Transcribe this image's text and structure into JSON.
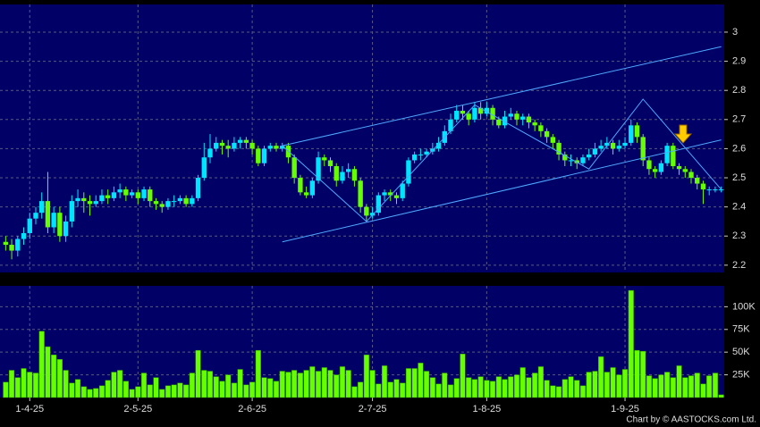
{
  "chart_data": {
    "type": "candlestick",
    "categories": [
      null,
      null,
      null,
      null,
      "1-4-25",
      null,
      null,
      null,
      null,
      null,
      null,
      null,
      null,
      null,
      null,
      null,
      null,
      null,
      null,
      null,
      null,
      null,
      "2-5-25",
      null,
      null,
      null,
      null,
      null,
      null,
      null,
      null,
      null,
      null,
      null,
      null,
      null,
      null,
      null,
      null,
      null,
      null,
      "2-6-25",
      null,
      null,
      null,
      null,
      null,
      null,
      null,
      null,
      null,
      null,
      null,
      null,
      null,
      null,
      null,
      null,
      null,
      null,
      null,
      "2-7-25",
      null,
      null,
      null,
      null,
      null,
      null,
      null,
      null,
      null,
      null,
      null,
      null,
      null,
      null,
      null,
      null,
      null,
      null,
      "1-8-25",
      null,
      null,
      null,
      null,
      null,
      null,
      null,
      null,
      null,
      null,
      null,
      null,
      null,
      null,
      null,
      null,
      null,
      null,
      null,
      null,
      null,
      null,
      "1-9-25",
      null,
      null,
      null,
      null,
      null,
      null,
      null,
      null,
      null,
      null,
      null,
      null,
      null,
      null,
      null,
      null
    ],
    "open": [
      2.28,
      2.27,
      2.25,
      2.29,
      2.31,
      2.36,
      2.38,
      2.42,
      2.33,
      2.38,
      2.3,
      2.35,
      2.42,
      2.43,
      2.42,
      2.41,
      2.42,
      2.44,
      2.43,
      2.45,
      2.46,
      2.44,
      2.45,
      2.43,
      2.46,
      2.42,
      2.41,
      2.4,
      2.42,
      2.42,
      2.43,
      2.41,
      2.43,
      2.5,
      2.57,
      2.6,
      2.62,
      2.61,
      2.6,
      2.62,
      2.63,
      2.62,
      2.6,
      2.55,
      2.6,
      2.61,
      2.6,
      2.61,
      2.57,
      2.5,
      2.45,
      2.44,
      2.49,
      2.57,
      2.56,
      2.54,
      2.49,
      2.52,
      2.53,
      2.49,
      2.4,
      2.37,
      2.38,
      2.44,
      2.45,
      2.44,
      2.43,
      2.48,
      2.56,
      2.58,
      2.58,
      2.59,
      2.6,
      2.62,
      2.66,
      2.7,
      2.73,
      2.72,
      2.7,
      2.74,
      2.72,
      2.74,
      2.7,
      2.68,
      2.71,
      2.72,
      2.7,
      2.71,
      2.69,
      2.68,
      2.66,
      2.64,
      2.62,
      2.58,
      2.56,
      2.56,
      2.55,
      2.57,
      2.58,
      2.6,
      2.61,
      2.62,
      2.6,
      2.61,
      2.62,
      2.68,
      2.64,
      2.56,
      2.53,
      2.52,
      2.55,
      2.61,
      2.54,
      2.53,
      2.52,
      2.5,
      2.48,
      2.46,
      2.46,
      2.46
    ],
    "high": [
      2.3,
      2.29,
      2.3,
      2.33,
      2.38,
      2.4,
      2.45,
      2.52,
      2.4,
      2.4,
      2.37,
      2.44,
      2.46,
      2.45,
      2.44,
      2.44,
      2.46,
      2.46,
      2.47,
      2.48,
      2.47,
      2.46,
      2.46,
      2.47,
      2.47,
      2.43,
      2.42,
      2.43,
      2.44,
      2.44,
      2.44,
      2.44,
      2.51,
      2.62,
      2.65,
      2.64,
      2.63,
      2.63,
      2.64,
      2.64,
      2.64,
      2.63,
      2.61,
      2.61,
      2.62,
      2.62,
      2.62,
      2.62,
      2.58,
      2.51,
      2.47,
      2.5,
      2.59,
      2.58,
      2.57,
      2.55,
      2.54,
      2.55,
      2.54,
      2.5,
      2.41,
      2.4,
      2.45,
      2.46,
      2.46,
      2.45,
      2.49,
      2.57,
      2.59,
      2.6,
      2.6,
      2.62,
      2.64,
      2.68,
      2.72,
      2.75,
      2.75,
      2.73,
      2.76,
      2.76,
      2.76,
      2.75,
      2.71,
      2.73,
      2.74,
      2.73,
      2.72,
      2.72,
      2.7,
      2.69,
      2.67,
      2.65,
      2.63,
      2.59,
      2.58,
      2.57,
      2.58,
      2.6,
      2.62,
      2.63,
      2.64,
      2.63,
      2.63,
      2.64,
      2.7,
      2.69,
      2.65,
      2.57,
      2.54,
      2.56,
      2.62,
      2.62,
      2.55,
      2.54,
      2.53,
      2.51,
      2.49,
      2.47,
      2.47,
      2.47
    ],
    "low": [
      2.25,
      2.22,
      2.23,
      2.27,
      2.29,
      2.34,
      2.36,
      2.31,
      2.31,
      2.28,
      2.28,
      2.33,
      2.4,
      2.38,
      2.37,
      2.4,
      2.41,
      2.41,
      2.42,
      2.43,
      2.42,
      2.43,
      2.41,
      2.42,
      2.4,
      2.39,
      2.38,
      2.39,
      2.4,
      2.41,
      2.4,
      2.4,
      2.42,
      2.49,
      2.55,
      2.59,
      2.58,
      2.57,
      2.59,
      2.6,
      2.6,
      2.58,
      2.54,
      2.54,
      2.59,
      2.59,
      2.59,
      2.55,
      2.48,
      2.44,
      2.43,
      2.43,
      2.48,
      2.54,
      2.52,
      2.47,
      2.48,
      2.5,
      2.47,
      2.38,
      2.35,
      2.36,
      2.37,
      2.42,
      2.42,
      2.41,
      2.42,
      2.47,
      2.55,
      2.56,
      2.57,
      2.58,
      2.59,
      2.61,
      2.65,
      2.69,
      2.7,
      2.68,
      2.69,
      2.7,
      2.71,
      2.68,
      2.67,
      2.67,
      2.7,
      2.68,
      2.68,
      2.67,
      2.66,
      2.64,
      2.62,
      2.6,
      2.56,
      2.54,
      2.54,
      2.53,
      2.54,
      2.56,
      2.57,
      2.59,
      2.6,
      2.58,
      2.59,
      2.6,
      2.61,
      2.62,
      2.54,
      2.51,
      2.5,
      2.51,
      2.54,
      2.53,
      2.51,
      2.5,
      2.48,
      2.46,
      2.41,
      2.44,
      2.45,
      2.45
    ],
    "close": [
      2.27,
      2.25,
      2.29,
      2.31,
      2.36,
      2.38,
      2.42,
      2.33,
      2.38,
      2.3,
      2.35,
      2.42,
      2.43,
      2.42,
      2.41,
      2.42,
      2.44,
      2.43,
      2.45,
      2.46,
      2.44,
      2.45,
      2.43,
      2.46,
      2.42,
      2.41,
      2.4,
      2.42,
      2.42,
      2.43,
      2.41,
      2.43,
      2.5,
      2.57,
      2.6,
      2.62,
      2.61,
      2.6,
      2.62,
      2.63,
      2.62,
      2.6,
      2.55,
      2.6,
      2.61,
      2.6,
      2.61,
      2.57,
      2.5,
      2.45,
      2.44,
      2.49,
      2.57,
      2.56,
      2.54,
      2.49,
      2.52,
      2.53,
      2.49,
      2.4,
      2.37,
      2.38,
      2.44,
      2.45,
      2.44,
      2.43,
      2.48,
      2.56,
      2.58,
      2.58,
      2.59,
      2.6,
      2.62,
      2.66,
      2.7,
      2.73,
      2.72,
      2.7,
      2.74,
      2.72,
      2.74,
      2.7,
      2.68,
      2.71,
      2.72,
      2.7,
      2.71,
      2.69,
      2.68,
      2.66,
      2.64,
      2.62,
      2.58,
      2.56,
      2.56,
      2.55,
      2.57,
      2.58,
      2.6,
      2.61,
      2.62,
      2.6,
      2.61,
      2.62,
      2.68,
      2.64,
      2.56,
      2.53,
      2.52,
      2.55,
      2.61,
      2.54,
      2.53,
      2.52,
      2.5,
      2.48,
      2.46,
      2.46,
      2.46,
      2.46
    ],
    "up_color": "#00e5ff",
    "down_color": "#66ff00",
    "ylim": [
      2.175,
      3.095
    ],
    "yticks": [
      2.2,
      2.3,
      2.4,
      2.5,
      2.6,
      2.7,
      2.8,
      2.9,
      3
    ],
    "grid": true,
    "overlays": [
      {
        "color": "#4fa8ff",
        "x": [
          46,
          119
        ],
        "y": [
          2.61,
          2.95
        ]
      },
      {
        "color": "#4fa8ff",
        "x": [
          46,
          119
        ],
        "y": [
          2.28,
          2.63
        ]
      },
      {
        "color": "#4fa8ff",
        "x": [
          46,
          60,
          78,
          97,
          106,
          119
        ],
        "y": [
          2.61,
          2.35,
          2.75,
          2.53,
          2.77,
          2.46
        ]
      }
    ],
    "volume": {
      "color": "#66ff00",
      "values": [
        17000,
        30000,
        22000,
        32000,
        28000,
        27000,
        73000,
        56000,
        47000,
        42000,
        30000,
        16000,
        20000,
        12000,
        9000,
        10000,
        13000,
        19000,
        28000,
        30000,
        18000,
        9000,
        12000,
        27000,
        14000,
        22000,
        9000,
        13000,
        14000,
        16000,
        14000,
        27000,
        52000,
        30000,
        29000,
        23000,
        18000,
        25000,
        16000,
        31000,
        14000,
        17000,
        52000,
        22000,
        21000,
        18000,
        29000,
        28000,
        30000,
        27000,
        30000,
        34000,
        29000,
        33000,
        30000,
        25000,
        34000,
        30000,
        12000,
        17000,
        47000,
        30000,
        15000,
        35000,
        17000,
        20000,
        16000,
        32000,
        32000,
        38000,
        29000,
        22000,
        15000,
        27000,
        14000,
        21000,
        48000,
        22000,
        20000,
        23000,
        19000,
        18000,
        23000,
        20000,
        23000,
        25000,
        33000,
        22000,
        27000,
        34000,
        19000,
        13000,
        12000,
        20000,
        23000,
        19000,
        13000,
        28000,
        29000,
        45000,
        28000,
        33000,
        25000,
        31000,
        118000,
        52000,
        51000,
        24000,
        21000,
        25000,
        28000,
        22000,
        35000,
        22000,
        24000,
        27000,
        15000,
        24000,
        27000,
        3000
      ],
      "ylim": [
        0,
        123000
      ],
      "yticks": [
        {
          "value": 25000,
          "label": "25K"
        },
        {
          "value": 50000,
          "label": "50K"
        },
        {
          "value": 75000,
          "label": "75K"
        },
        {
          "value": 100000,
          "label": "100K"
        }
      ]
    },
    "credit": "Chart by © AASTOCKS.com Ltd."
  }
}
